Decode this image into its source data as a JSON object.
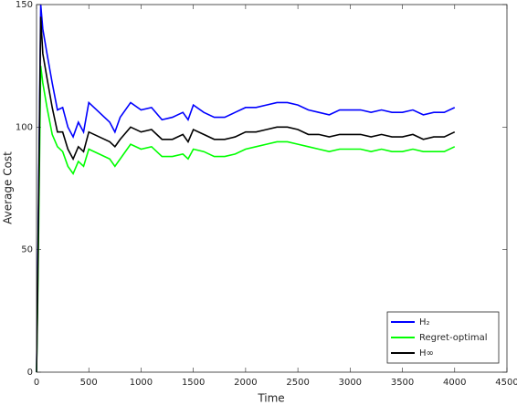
{
  "chart_data": {
    "type": "line",
    "xlabel": "Time",
    "ylabel": "Average Cost",
    "x": [
      0,
      10,
      40,
      60,
      100,
      150,
      200,
      250,
      300,
      350,
      400,
      450,
      500,
      600,
      700,
      750,
      800,
      900,
      1000,
      1100,
      1200,
      1300,
      1400,
      1450,
      1500,
      1600,
      1700,
      1800,
      1900,
      2000,
      2100,
      2200,
      2300,
      2400,
      2500,
      2600,
      2700,
      2800,
      2900,
      3000,
      3100,
      3200,
      3300,
      3400,
      3500,
      3600,
      3700,
      3800,
      3900,
      4000
    ],
    "series": [
      {
        "name": "H₂",
        "color": "#0000ff",
        "values": [
          0,
          35,
          150,
          140,
          130,
          118,
          107,
          108,
          100,
          96,
          102,
          98,
          110,
          106,
          102,
          98,
          104,
          110,
          107,
          108,
          103,
          104,
          106,
          103,
          109,
          106,
          104,
          104,
          106,
          108,
          108,
          109,
          110,
          110,
          109,
          107,
          106,
          105,
          107,
          107,
          107,
          106,
          107,
          106,
          106,
          107,
          105,
          106,
          106,
          108
        ]
      },
      {
        "name": "Regret-optimal",
        "color": "#00ff00",
        "values": [
          0,
          25,
          125,
          118,
          108,
          97,
          92,
          90,
          84,
          81,
          86,
          84,
          91,
          89,
          87,
          84,
          87,
          93,
          91,
          92,
          88,
          88,
          89,
          87,
          91,
          90,
          88,
          88,
          89,
          91,
          92,
          93,
          94,
          94,
          93,
          92,
          91,
          90,
          91,
          91,
          91,
          90,
          91,
          90,
          90,
          91,
          90,
          90,
          90,
          92
        ]
      },
      {
        "name": "H∞",
        "color": "#000000",
        "values": [
          0,
          30,
          145,
          130,
          120,
          108,
          98,
          98,
          91,
          87,
          92,
          90,
          98,
          96,
          94,
          92,
          95,
          100,
          98,
          99,
          95,
          95,
          97,
          94,
          99,
          97,
          95,
          95,
          96,
          98,
          98,
          99,
          100,
          100,
          99,
          97,
          97,
          96,
          97,
          97,
          97,
          96,
          97,
          96,
          96,
          97,
          95,
          96,
          96,
          98
        ]
      }
    ],
    "xlim": [
      0,
      4500
    ],
    "xticks": [
      0,
      500,
      1000,
      1500,
      2000,
      2500,
      3000,
      3500,
      4000,
      4500
    ],
    "ylim": [
      0,
      150
    ],
    "yticks": [
      0,
      50,
      100,
      150
    ],
    "legend": "lower right"
  }
}
